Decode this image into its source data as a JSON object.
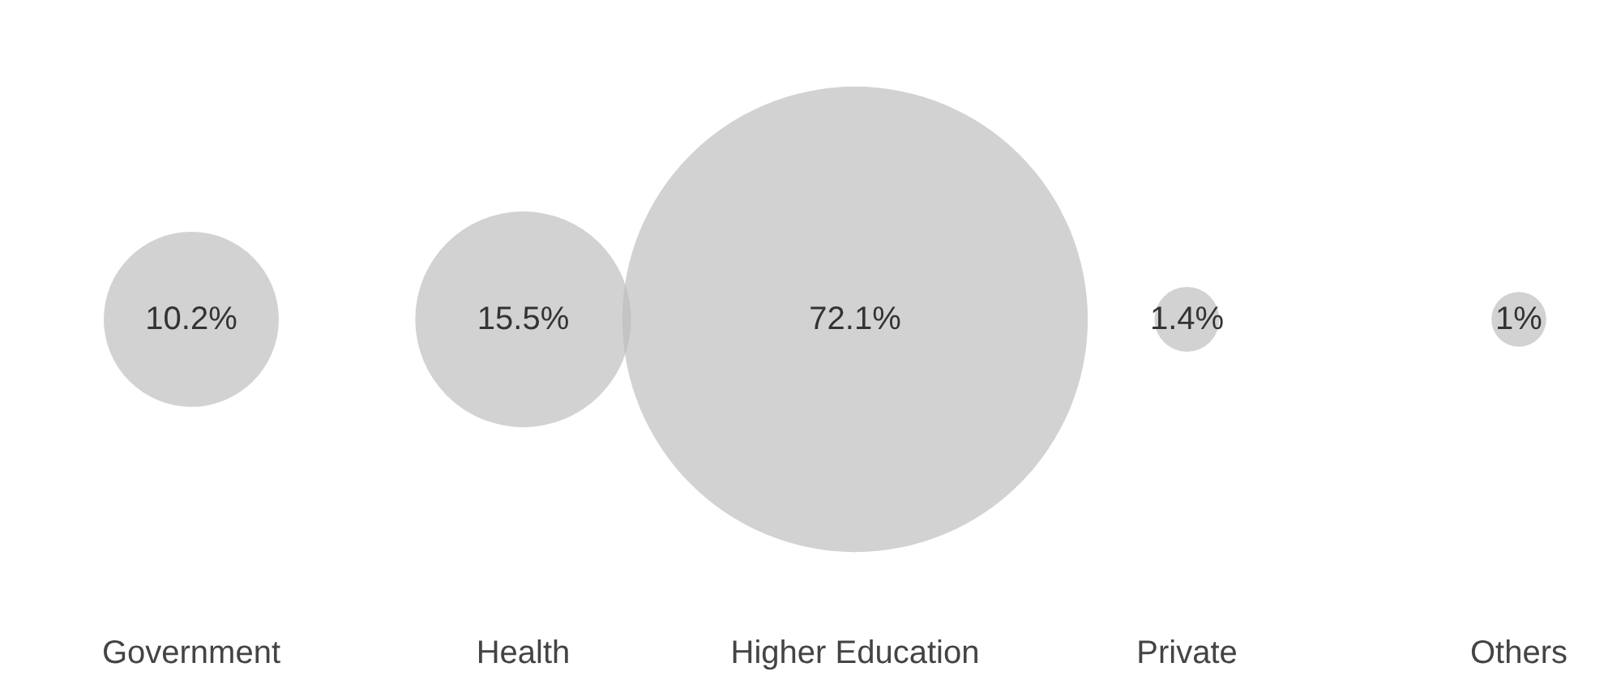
{
  "chart_data": {
    "type": "other",
    "categories": [
      "Government",
      "Health",
      "Higher Education",
      "Private",
      "Others"
    ],
    "values": [
      10.2,
      15.5,
      72.1,
      1.4,
      1
    ],
    "value_labels": [
      "10.2%",
      "15.5%",
      "72.1%",
      "1.4%",
      "1%"
    ],
    "color": "#bdbdbd"
  }
}
